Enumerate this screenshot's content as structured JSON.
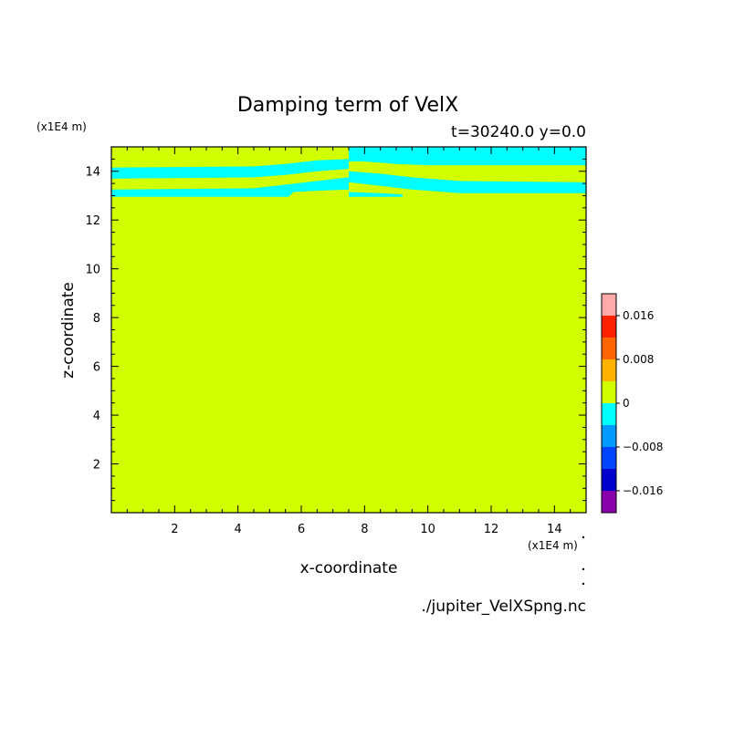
{
  "chart_data": {
    "type": "heatmap",
    "title": "Damping term of VelX",
    "subtitle": "t=30240.0 y=0.0",
    "xlabel": "x-coordinate",
    "ylabel": "z-coordinate",
    "x_unit": "(x1E4 m)",
    "y_unit": "(x1E4 m)",
    "xlim": [
      0,
      15
    ],
    "ylim": [
      0,
      15
    ],
    "x_ticks": [
      2,
      4,
      6,
      8,
      10,
      12,
      14
    ],
    "y_ticks": [
      2,
      4,
      6,
      8,
      10,
      12,
      14
    ],
    "background_level": 0,
    "background_color": "#d2ff00",
    "negative_band_color": "#00ffff",
    "negative_bands": [
      {
        "name": "upper-left",
        "level": -0.004,
        "polygon": [
          [
            0,
            14.15
          ],
          [
            4.5,
            14.2
          ],
          [
            5.5,
            14.3
          ],
          [
            6.5,
            14.45
          ],
          [
            7.5,
            14.5
          ],
          [
            7.5,
            14.1
          ],
          [
            6.5,
            14.0
          ],
          [
            5.5,
            13.85
          ],
          [
            4.5,
            13.75
          ],
          [
            0,
            13.7
          ]
        ]
      },
      {
        "name": "lower-left",
        "level": -0.004,
        "polygon": [
          [
            0,
            13.25
          ],
          [
            4.5,
            13.3
          ],
          [
            5.5,
            13.45
          ],
          [
            6.5,
            13.6
          ],
          [
            7.5,
            13.75
          ],
          [
            7.5,
            13.25
          ],
          [
            6.5,
            13.2
          ],
          [
            5.75,
            13.15
          ],
          [
            5.6,
            12.95
          ],
          [
            0,
            12.95
          ]
        ]
      },
      {
        "name": "top-right",
        "level": -0.004,
        "polygon": [
          [
            7.5,
            15
          ],
          [
            15,
            15
          ],
          [
            15,
            14.25
          ],
          [
            12,
            14.25
          ],
          [
            10,
            14.25
          ],
          [
            9,
            14.3
          ],
          [
            8,
            14.4
          ],
          [
            7.5,
            14.4
          ]
        ]
      },
      {
        "name": "middle-right",
        "level": -0.004,
        "polygon": [
          [
            7.5,
            14.0
          ],
          [
            8.5,
            13.9
          ],
          [
            9.5,
            13.75
          ],
          [
            11,
            13.6
          ],
          [
            15,
            13.55
          ],
          [
            15,
            13.1
          ],
          [
            11,
            13.1
          ],
          [
            9.5,
            13.25
          ],
          [
            8.5,
            13.4
          ],
          [
            7.5,
            13.55
          ]
        ]
      },
      {
        "name": "small-lower-right",
        "level": -0.004,
        "polygon": [
          [
            7.5,
            13.15
          ],
          [
            8.5,
            13.1
          ],
          [
            9.2,
            13.05
          ],
          [
            9.2,
            12.95
          ],
          [
            7.5,
            12.95
          ]
        ]
      }
    ],
    "colorbar": {
      "levels": [
        -0.02,
        -0.016,
        -0.012,
        -0.008,
        -0.004,
        0,
        0.004,
        0.008,
        0.012,
        0.016,
        0.02
      ],
      "colors": [
        "#8800aa",
        "#0000cc",
        "#0044ff",
        "#0099ff",
        "#00ffff",
        "#d2ff00",
        "#ffb300",
        "#ff6600",
        "#ff2200",
        "#ffaaaa"
      ],
      "tick_values": [
        -0.016,
        -0.008,
        0,
        0.008,
        0.016
      ],
      "tick_labels": [
        "−0.016",
        "−0.008",
        "0",
        "0.008",
        "0.016"
      ]
    }
  },
  "footer": {
    "filename": "./jupiter_VelXSpng.nc"
  }
}
